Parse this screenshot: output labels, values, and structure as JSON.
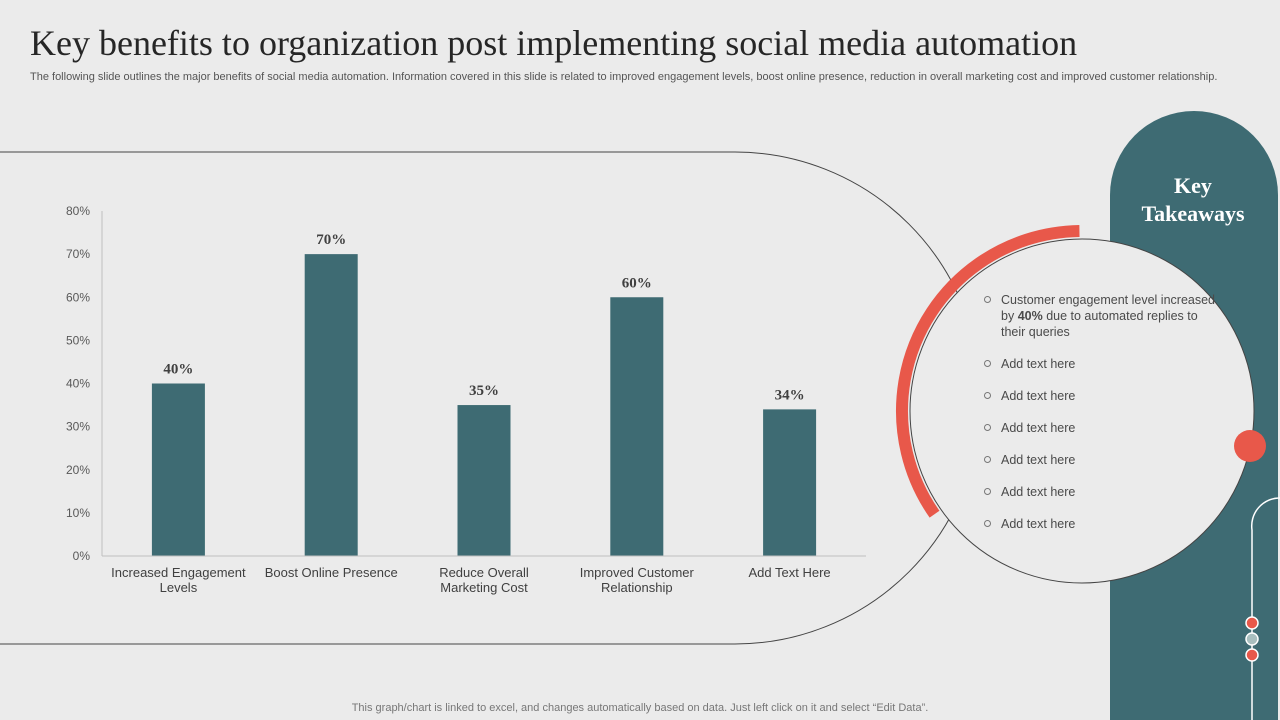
{
  "slide": {
    "title": "Key benefits to organization post implementing social media automation",
    "subtitle": "The following slide outlines the major benefits of social media automation. Information covered in this slide is related to improved engagement levels, boost online presence, reduction in overall marketing cost and improved customer relationship.",
    "footnote": "This graph/chart is linked to excel,  and changes automatically based on data. Just left click on it and select “Edit Data”."
  },
  "takeaways": {
    "title": "Key Takeaways",
    "items": [
      {
        "pre": "Customer engagement level increased by ",
        "bold": "40%",
        "post": " due to automated replies to their queries"
      },
      {
        "pre": "Add text here",
        "bold": "",
        "post": ""
      },
      {
        "pre": "Add text here",
        "bold": "",
        "post": ""
      },
      {
        "pre": "Add text here",
        "bold": "",
        "post": ""
      },
      {
        "pre": "Add text here",
        "bold": "",
        "post": ""
      },
      {
        "pre": "Add text here",
        "bold": "",
        "post": ""
      },
      {
        "pre": "Add text here",
        "bold": "",
        "post": ""
      }
    ]
  },
  "colors": {
    "bar": "#3e6b73",
    "accent": "#e8584a",
    "panel": "#3e6b73",
    "background": "#ebebeb"
  },
  "chart_data": {
    "type": "bar",
    "categories": [
      [
        "Increased Engagement",
        "Levels"
      ],
      [
        "Boost Online Presence"
      ],
      [
        "Reduce Overall",
        "Marketing Cost"
      ],
      [
        "Improved Customer",
        "Relationship"
      ],
      [
        "Add Text Here"
      ]
    ],
    "values": [
      40,
      70,
      35,
      60,
      34
    ],
    "value_labels": [
      "40%",
      "70%",
      "35%",
      "60%",
      "34%"
    ],
    "ylim": [
      0,
      80
    ],
    "yticks": [
      0,
      10,
      20,
      30,
      40,
      50,
      60,
      70,
      80
    ],
    "ytick_format": "%",
    "grid": false,
    "legend": "none"
  }
}
